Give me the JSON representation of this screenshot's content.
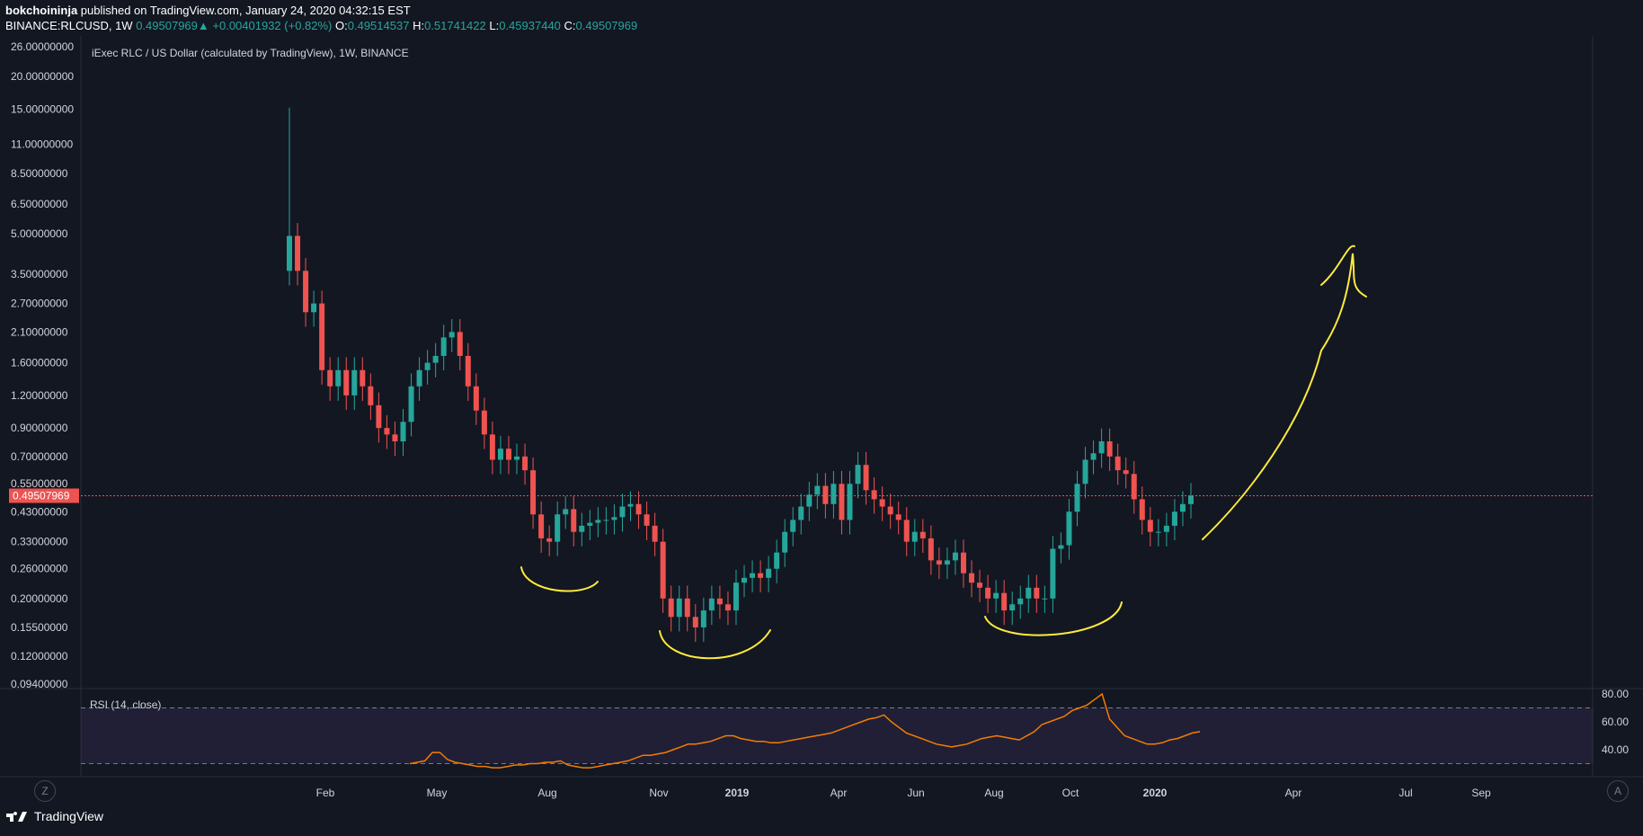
{
  "header": {
    "author": "bokchoininja",
    "published_text": " published on TradingView.com, January 24, 2020 04:32:15 EST",
    "symbol": "BINANCE:RLCUSD, 1W ",
    "close_value": "0.49507969",
    "change": "+0.00401932 (+0.82%)",
    "o_label": "O:",
    "o_value": "0.49514537",
    "h_label": "H:",
    "h_value": "0.51741422",
    "l_label": "L:",
    "l_value": "0.45937440",
    "c_label": "C:",
    "c_value": "0.49507969"
  },
  "footer": {
    "brand": "TradingView",
    "tz_button": "Z",
    "auto_button": "A"
  },
  "colors": {
    "bg": "#131722",
    "up": "#26a69a",
    "down": "#ef5350",
    "annotation": "#ffeb3b",
    "rsi_line": "#f57c00",
    "rsi_band": "#7e57c2"
  },
  "chart_data": [
    {
      "type": "candlestick",
      "title": "iExec RLC / US Dollar (calculated by TradingView), 1W, BINANCE",
      "scale": "log",
      "last_price_label": "0.49507969",
      "y_ticks": [
        "26.00000000",
        "20.00000000",
        "15.00000000",
        "11.00000000",
        "8.50000000",
        "6.50000000",
        "5.00000000",
        "3.50000000",
        "2.70000000",
        "2.10000000",
        "1.60000000",
        "1.20000000",
        "0.90000000",
        "0.70000000",
        "0.55000000",
        "0.43000000",
        "0.33000000",
        "0.26000000",
        "0.20000000",
        "0.15500000",
        "0.12000000",
        "0.09400000"
      ],
      "x_ticks": [
        "Feb",
        "May",
        "Aug",
        "Nov",
        "2019",
        "Apr",
        "Jun",
        "Aug",
        "Oct",
        "2020",
        "Apr",
        "Jul",
        "Sep"
      ],
      "x_ticks_bold": [
        "2019",
        "2020"
      ],
      "closes": [
        4.9,
        3.6,
        2.5,
        2.7,
        1.5,
        1.3,
        1.5,
        1.2,
        1.5,
        1.3,
        1.1,
        0.9,
        0.85,
        0.8,
        0.95,
        1.3,
        1.5,
        1.6,
        1.7,
        2.0,
        2.1,
        1.7,
        1.3,
        1.05,
        0.85,
        0.68,
        0.75,
        0.68,
        0.7,
        0.62,
        0.42,
        0.34,
        0.33,
        0.42,
        0.44,
        0.36,
        0.38,
        0.39,
        0.4,
        0.4,
        0.41,
        0.45,
        0.46,
        0.42,
        0.38,
        0.33,
        0.2,
        0.17,
        0.2,
        0.17,
        0.155,
        0.18,
        0.2,
        0.19,
        0.18,
        0.23,
        0.24,
        0.25,
        0.24,
        0.26,
        0.3,
        0.36,
        0.4,
        0.45,
        0.5,
        0.54,
        0.46,
        0.55,
        0.4,
        0.55,
        0.65,
        0.52,
        0.48,
        0.45,
        0.42,
        0.4,
        0.33,
        0.36,
        0.34,
        0.28,
        0.27,
        0.28,
        0.3,
        0.25,
        0.23,
        0.22,
        0.2,
        0.21,
        0.18,
        0.19,
        0.2,
        0.22,
        0.2,
        0.2,
        0.31,
        0.32,
        0.43,
        0.55,
        0.68,
        0.72,
        0.8,
        0.7,
        0.62,
        0.6,
        0.48,
        0.4,
        0.36,
        0.36,
        0.38,
        0.43,
        0.46,
        0.4951
      ]
    },
    {
      "type": "line",
      "title": "RSI (14, close)",
      "y_ticks": [
        "80.00",
        "60.00",
        "40.00"
      ],
      "ylim": [
        20,
        85
      ],
      "band": [
        30,
        70
      ],
      "values": [
        30,
        31,
        32,
        38,
        38,
        33,
        31,
        30,
        29,
        28,
        28,
        27,
        27,
        28,
        29,
        29,
        30,
        30,
        31,
        31,
        32,
        29,
        28,
        27,
        27,
        28,
        29,
        30,
        31,
        32,
        34,
        36,
        36,
        37,
        38,
        40,
        42,
        44,
        44,
        45,
        46,
        48,
        50,
        50,
        48,
        47,
        46,
        46,
        45,
        45,
        46,
        47,
        48,
        49,
        50,
        51,
        52,
        54,
        56,
        58,
        60,
        62,
        63,
        65,
        60,
        56,
        52,
        50,
        48,
        46,
        44,
        43,
        42,
        43,
        44,
        46,
        48,
        49,
        50,
        49,
        48,
        47,
        50,
        53,
        58,
        60,
        62,
        64,
        68,
        70,
        72,
        76,
        80,
        62,
        56,
        50,
        48,
        46,
        44,
        44,
        45,
        47,
        48,
        50,
        52,
        53
      ]
    }
  ]
}
